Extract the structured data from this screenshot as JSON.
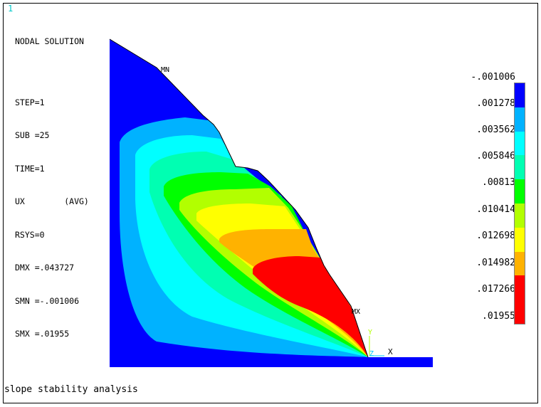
{
  "window_number": "1",
  "info": {
    "title": "NODAL SOLUTION",
    "step": "STEP=1",
    "sub": "SUB =25",
    "time": "TIME=1",
    "item": "UX        (AVG)",
    "rsys": "RSYS=0",
    "dmx": "DMX =.043727",
    "smn": "SMN =-.001006",
    "smx": "SMX =.01955"
  },
  "labels": {
    "min": "MN",
    "max": "MX",
    "axis_x": "X",
    "axis_y": "Y",
    "axis_z": "Z"
  },
  "legend": {
    "values": [
      "-.001006",
      ".001278",
      ".003562",
      ".005846",
      ".00813",
      ".010414",
      ".012698",
      ".014982",
      ".017266",
      ".01955"
    ],
    "colors": [
      "#0000ff",
      "#00b2ff",
      "#00ffff",
      "#00ffb2",
      "#00ff00",
      "#b2ff00",
      "#ffff00",
      "#ffb200",
      "#ff0000",
      "#ff0000"
    ]
  },
  "caption": "slope stability analysis"
}
